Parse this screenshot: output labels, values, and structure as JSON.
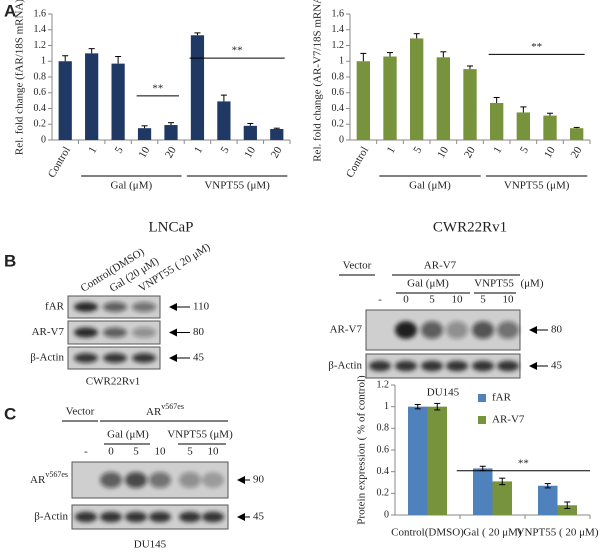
{
  "panel_labels": [
    "A",
    "B",
    "C"
  ],
  "chart_data": [
    {
      "type": "bar",
      "ylabel": "Rel. fold change  (fAR/18S mRNA)",
      "xlabel": "LNCaP",
      "categories": [
        "Control",
        "1",
        "5",
        "10",
        "20",
        "1",
        "5",
        "10",
        "20"
      ],
      "values": [
        1.0,
        1.1,
        0.97,
        0.15,
        0.19,
        1.33,
        0.49,
        0.18,
        0.14
      ],
      "errors": [
        0.07,
        0.06,
        0.09,
        0.03,
        0.03,
        0.03,
        0.08,
        0.03,
        0.01
      ],
      "color": "#1f3864",
      "ylim": [
        0,
        1.6
      ],
      "yticks": [
        0,
        0.2,
        0.4,
        0.6,
        0.8,
        1,
        1.2,
        1.4,
        1.6
      ],
      "group_labels": [
        "Gal (μM)",
        "VNPT55 (μM)"
      ],
      "significance": [
        "**",
        "**"
      ]
    },
    {
      "type": "bar",
      "ylabel": "Rel. fold change (AR-V7/18S  mRNA)",
      "xlabel": "CWR22Rv1",
      "categories": [
        "Control",
        "1",
        "5",
        "10",
        "20",
        "1",
        "5",
        "10",
        "20"
      ],
      "values": [
        1.0,
        1.06,
        1.29,
        1.05,
        0.9,
        0.47,
        0.35,
        0.31,
        0.15
      ],
      "errors": [
        0.1,
        0.05,
        0.06,
        0.07,
        0.04,
        0.07,
        0.07,
        0.03,
        0.01
      ],
      "color": "#77933c",
      "ylim": [
        0,
        1.6
      ],
      "yticks": [
        0,
        0.2,
        0.4,
        0.6,
        0.8,
        1,
        1.2,
        1.4,
        1.6
      ],
      "group_labels": [
        "Gal (μM)",
        "VNPT55 (μM)"
      ],
      "significance": [
        "**"
      ]
    },
    {
      "type": "bar",
      "ylabel": "Protein expression ( % of control)",
      "categories": [
        "Control(DMSO)",
        "Gal ( 20 μM)",
        "VNPT55 ( 20 μM)"
      ],
      "series": [
        {
          "name": "fAR",
          "color": "#4f81bd",
          "values": [
            1.0,
            0.43,
            0.27
          ],
          "errors": [
            0.02,
            0.02,
            0.02
          ]
        },
        {
          "name": "AR-V7",
          "color": "#77933c",
          "values": [
            1.0,
            0.31,
            0.09
          ],
          "errors": [
            0.03,
            0.03,
            0.03
          ]
        }
      ],
      "ylim": [
        0,
        1.2
      ],
      "yticks": [
        0,
        0.2,
        0.4,
        0.6,
        0.8,
        1,
        1.2
      ],
      "legend": "top-right",
      "significance": [
        "**"
      ]
    }
  ],
  "blots": {
    "b_left": {
      "lanes": [
        "Control(DMSO)",
        "Gal (20 μM)",
        "VNPT55 ( 20 μM)"
      ],
      "rows": [
        {
          "label": "fAR",
          "size": 110
        },
        {
          "label": "AR-V7",
          "size": 80
        },
        {
          "label": "β-Actin",
          "size": 45
        }
      ],
      "cell": "CWR22Rv1"
    },
    "b_right": {
      "vector": "Vector",
      "construct": "AR-V7",
      "groups": [
        "Gal (μM)",
        "VNPT55",
        "(μM)"
      ],
      "lanes": [
        "-",
        "0",
        "5",
        "10",
        "5",
        "10"
      ],
      "rows": [
        {
          "label": "AR-V7",
          "size": 80
        },
        {
          "label": "β-Actin",
          "size": 45
        }
      ],
      "cell": "DU145"
    },
    "c": {
      "vector": "Vector",
      "construct": {
        "base": "AR",
        "sup": "v567es"
      },
      "groups": [
        "Gal (μM)",
        "VNPT55 (μM)"
      ],
      "lanes": [
        "-",
        "0",
        "5",
        "10",
        "5",
        "10"
      ],
      "rows": [
        {
          "label": {
            "base": "AR",
            "sup": "v567es"
          },
          "size": 90
        },
        {
          "label": "β-Actin",
          "size": 45
        }
      ],
      "cell": "DU145"
    }
  }
}
